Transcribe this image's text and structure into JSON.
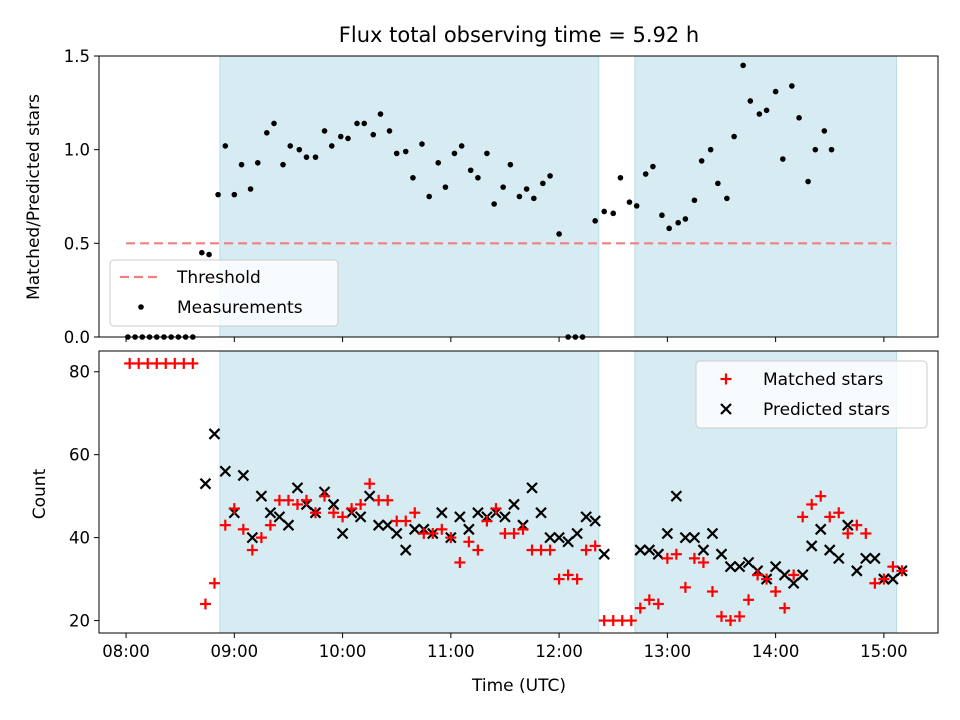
{
  "chart_data": [
    {
      "type": "scatter",
      "title": "Flux total observing time = 5.92 h",
      "xlabel": "",
      "ylabel": "Matched/Predicted stars",
      "ylim": [
        0,
        1.5
      ],
      "yticks": [
        "0.0",
        "0.5",
        "1.0",
        "1.5"
      ],
      "x_range": [
        "07:45",
        "15:30"
      ],
      "grid": false,
      "legend_position": "lower-left",
      "shaded_intervals": [
        [
          "08:52",
          "12:22"
        ],
        [
          "12:42",
          "15:07"
        ]
      ],
      "threshold": {
        "name": "Threshold",
        "value": 0.5,
        "x_range": [
          "08:00",
          "15:07"
        ],
        "color": "#f08080"
      },
      "series": [
        {
          "name": "Measurements",
          "color": "#000000",
          "points": [
            [
              "08:01",
              0
            ],
            [
              "08:05",
              0
            ],
            [
              "08:09",
              0
            ],
            [
              "08:13",
              0
            ],
            [
              "08:17",
              0
            ],
            [
              "08:21",
              0
            ],
            [
              "08:25",
              0
            ],
            [
              "08:29",
              0
            ],
            [
              "08:33",
              0
            ],
            [
              "08:37",
              0
            ],
            [
              "08:42",
              0.45
            ],
            [
              "08:46",
              0.44
            ],
            [
              "08:51",
              0.76
            ],
            [
              "08:55",
              1.02
            ],
            [
              "09:00",
              0.76
            ],
            [
              "09:04",
              0.92
            ],
            [
              "09:09",
              0.79
            ],
            [
              "09:13",
              0.93
            ],
            [
              "09:18",
              1.09
            ],
            [
              "09:22",
              1.14
            ],
            [
              "09:27",
              0.92
            ],
            [
              "09:31",
              1.02
            ],
            [
              "09:36",
              1.0
            ],
            [
              "09:40",
              0.96
            ],
            [
              "09:45",
              0.96
            ],
            [
              "09:50",
              1.1
            ],
            [
              "09:54",
              1.02
            ],
            [
              "09:59",
              1.07
            ],
            [
              "10:03",
              1.06
            ],
            [
              "10:08",
              1.14
            ],
            [
              "10:12",
              1.14
            ],
            [
              "10:17",
              1.08
            ],
            [
              "10:21",
              1.19
            ],
            [
              "10:26",
              1.1
            ],
            [
              "10:30",
              0.98
            ],
            [
              "10:35",
              0.99
            ],
            [
              "10:39",
              0.85
            ],
            [
              "10:44",
              1.03
            ],
            [
              "10:48",
              0.75
            ],
            [
              "10:53",
              0.93
            ],
            [
              "10:57",
              0.8
            ],
            [
              "11:02",
              0.98
            ],
            [
              "11:06",
              1.02
            ],
            [
              "11:11",
              0.89
            ],
            [
              "11:15",
              0.85
            ],
            [
              "11:20",
              0.98
            ],
            [
              "11:24",
              0.71
            ],
            [
              "11:29",
              0.8
            ],
            [
              "11:33",
              0.92
            ],
            [
              "11:38",
              0.75
            ],
            [
              "11:42",
              0.79
            ],
            [
              "11:46",
              0.74
            ],
            [
              "11:51",
              0.82
            ],
            [
              "11:55",
              0.86
            ],
            [
              "12:00",
              0.55
            ],
            [
              "12:05",
              0
            ],
            [
              "12:09",
              0
            ],
            [
              "12:13",
              0
            ],
            [
              "12:20",
              0.62
            ],
            [
              "12:25",
              0.67
            ],
            [
              "12:30",
              0.66
            ],
            [
              "12:34",
              0.85
            ],
            [
              "12:39",
              0.72
            ],
            [
              "12:43",
              0.7
            ],
            [
              "12:48",
              0.87
            ],
            [
              "12:52",
              0.91
            ],
            [
              "12:57",
              0.65
            ],
            [
              "13:01",
              0.58
            ],
            [
              "13:06",
              0.61
            ],
            [
              "13:10",
              0.63
            ],
            [
              "13:15",
              0.73
            ],
            [
              "13:19",
              0.94
            ],
            [
              "13:24",
              1.0
            ],
            [
              "13:28",
              0.82
            ],
            [
              "13:33",
              0.74
            ],
            [
              "13:37",
              1.07
            ],
            [
              "13:42",
              1.45
            ],
            [
              "13:46",
              1.26
            ],
            [
              "13:51",
              1.19
            ],
            [
              "13:55",
              1.21
            ],
            [
              "14:00",
              1.31
            ],
            [
              "14:04",
              0.95
            ],
            [
              "14:09",
              1.34
            ],
            [
              "14:13",
              1.17
            ],
            [
              "14:18",
              0.83
            ],
            [
              "14:22",
              1.0
            ],
            [
              "14:27",
              1.1
            ],
            [
              "14:31",
              1.0
            ]
          ]
        }
      ]
    },
    {
      "type": "scatter",
      "xlabel": "Time (UTC)",
      "ylabel": "Count",
      "ylim": [
        17,
        85
      ],
      "yticks": [
        "20",
        "40",
        "60",
        "80"
      ],
      "xticks": [
        "08:00",
        "09:00",
        "10:00",
        "11:00",
        "12:00",
        "13:00",
        "14:00",
        "15:00"
      ],
      "x_range": [
        "07:45",
        "15:30"
      ],
      "grid": false,
      "legend_position": "top-right",
      "shaded_intervals": [
        [
          "08:52",
          "12:22"
        ],
        [
          "12:42",
          "15:07"
        ]
      ],
      "series": [
        {
          "name": "Matched stars",
          "marker": "+",
          "color": "#ff0000",
          "points": [
            [
              "08:02",
              82
            ],
            [
              "08:07",
              82
            ],
            [
              "08:12",
              82
            ],
            [
              "08:17",
              82
            ],
            [
              "08:22",
              82
            ],
            [
              "08:27",
              82
            ],
            [
              "08:32",
              82
            ],
            [
              "08:37",
              82
            ],
            [
              "08:44",
              24
            ],
            [
              "08:49",
              29
            ],
            [
              "08:55",
              43
            ],
            [
              "09:00",
              47
            ],
            [
              "09:05",
              42
            ],
            [
              "09:10",
              37
            ],
            [
              "09:15",
              40
            ],
            [
              "09:20",
              43
            ],
            [
              "09:25",
              49
            ],
            [
              "09:30",
              49
            ],
            [
              "09:35",
              48
            ],
            [
              "09:40",
              49
            ],
            [
              "09:45",
              46
            ],
            [
              "09:50",
              50
            ],
            [
              "09:55",
              46
            ],
            [
              "10:00",
              45
            ],
            [
              "10:05",
              47
            ],
            [
              "10:10",
              48
            ],
            [
              "10:15",
              53
            ],
            [
              "10:20",
              49
            ],
            [
              "10:25",
              49
            ],
            [
              "10:30",
              44
            ],
            [
              "10:35",
              44
            ],
            [
              "10:40",
              46
            ],
            [
              "10:45",
              41
            ],
            [
              "10:50",
              41
            ],
            [
              "10:55",
              42
            ],
            [
              "11:00",
              40
            ],
            [
              "11:05",
              34
            ],
            [
              "11:10",
              39
            ],
            [
              "11:15",
              37
            ],
            [
              "11:20",
              44
            ],
            [
              "11:25",
              47
            ],
            [
              "11:30",
              41
            ],
            [
              "11:35",
              41
            ],
            [
              "11:40",
              42
            ],
            [
              "11:45",
              37
            ],
            [
              "11:50",
              37
            ],
            [
              "11:55",
              37
            ],
            [
              "12:00",
              30
            ],
            [
              "12:05",
              31
            ],
            [
              "12:10",
              30
            ],
            [
              "12:15",
              37
            ],
            [
              "12:20",
              38
            ],
            [
              "12:25",
              20
            ],
            [
              "12:30",
              20
            ],
            [
              "12:35",
              20
            ],
            [
              "12:40",
              20
            ],
            [
              "12:45",
              23
            ],
            [
              "12:50",
              25
            ],
            [
              "12:55",
              24
            ],
            [
              "13:00",
              35
            ],
            [
              "13:05",
              36
            ],
            [
              "13:10",
              28
            ],
            [
              "13:15",
              35
            ],
            [
              "13:20",
              34
            ],
            [
              "13:25",
              27
            ],
            [
              "13:30",
              21
            ],
            [
              "13:35",
              20
            ],
            [
              "13:40",
              21
            ],
            [
              "13:45",
              25
            ],
            [
              "13:50",
              31
            ],
            [
              "13:55",
              30
            ],
            [
              "14:00",
              27
            ],
            [
              "14:05",
              23
            ],
            [
              "14:10",
              31
            ],
            [
              "14:15",
              45
            ],
            [
              "14:20",
              48
            ],
            [
              "14:25",
              50
            ],
            [
              "14:30",
              45
            ],
            [
              "14:35",
              46
            ],
            [
              "14:40",
              41
            ],
            [
              "14:45",
              43
            ],
            [
              "14:50",
              41
            ],
            [
              "14:55",
              29
            ],
            [
              "15:00",
              30
            ],
            [
              "15:05",
              33
            ],
            [
              "15:10",
              32
            ]
          ]
        },
        {
          "name": "Predicted stars",
          "marker": "x",
          "color": "#000000",
          "points": [
            [
              "08:44",
              53
            ],
            [
              "08:49",
              65
            ],
            [
              "08:55",
              56
            ],
            [
              "09:00",
              46
            ],
            [
              "09:05",
              55
            ],
            [
              "09:10",
              40
            ],
            [
              "09:15",
              50
            ],
            [
              "09:20",
              46
            ],
            [
              "09:25",
              45
            ],
            [
              "09:30",
              43
            ],
            [
              "09:35",
              52
            ],
            [
              "09:40",
              48
            ],
            [
              "09:45",
              46
            ],
            [
              "09:50",
              51
            ],
            [
              "09:55",
              48
            ],
            [
              "10:00",
              41
            ],
            [
              "10:05",
              46
            ],
            [
              "10:10",
              45
            ],
            [
              "10:15",
              50
            ],
            [
              "10:20",
              43
            ],
            [
              "10:25",
              43
            ],
            [
              "10:30",
              41
            ],
            [
              "10:35",
              37
            ],
            [
              "10:40",
              42
            ],
            [
              "10:45",
              42
            ],
            [
              "10:50",
              41
            ],
            [
              "10:55",
              46
            ],
            [
              "11:00",
              40
            ],
            [
              "11:05",
              45
            ],
            [
              "11:10",
              42
            ],
            [
              "11:15",
              46
            ],
            [
              "11:20",
              45
            ],
            [
              "11:25",
              46
            ],
            [
              "11:30",
              45
            ],
            [
              "11:35",
              48
            ],
            [
              "11:40",
              43
            ],
            [
              "11:45",
              52
            ],
            [
              "11:50",
              46
            ],
            [
              "11:55",
              40
            ],
            [
              "12:00",
              40
            ],
            [
              "12:05",
              39
            ],
            [
              "12:10",
              41
            ],
            [
              "12:15",
              45
            ],
            [
              "12:20",
              44
            ],
            [
              "12:25",
              36
            ],
            [
              "12:45",
              37
            ],
            [
              "12:50",
              37
            ],
            [
              "12:55",
              36
            ],
            [
              "13:00",
              41
            ],
            [
              "13:05",
              50
            ],
            [
              "13:10",
              40
            ],
            [
              "13:15",
              40
            ],
            [
              "13:20",
              37
            ],
            [
              "13:25",
              41
            ],
            [
              "13:30",
              36
            ],
            [
              "13:35",
              33
            ],
            [
              "13:40",
              33
            ],
            [
              "13:45",
              34
            ],
            [
              "13:50",
              32
            ],
            [
              "13:55",
              30
            ],
            [
              "14:00",
              33
            ],
            [
              "14:05",
              31
            ],
            [
              "14:10",
              29
            ],
            [
              "14:15",
              31
            ],
            [
              "14:20",
              38
            ],
            [
              "14:25",
              42
            ],
            [
              "14:30",
              37
            ],
            [
              "14:35",
              35
            ],
            [
              "14:40",
              43
            ],
            [
              "14:45",
              32
            ],
            [
              "14:50",
              35
            ],
            [
              "14:55",
              35
            ],
            [
              "15:00",
              30
            ],
            [
              "15:05",
              30
            ],
            [
              "15:10",
              32
            ]
          ]
        }
      ]
    }
  ]
}
